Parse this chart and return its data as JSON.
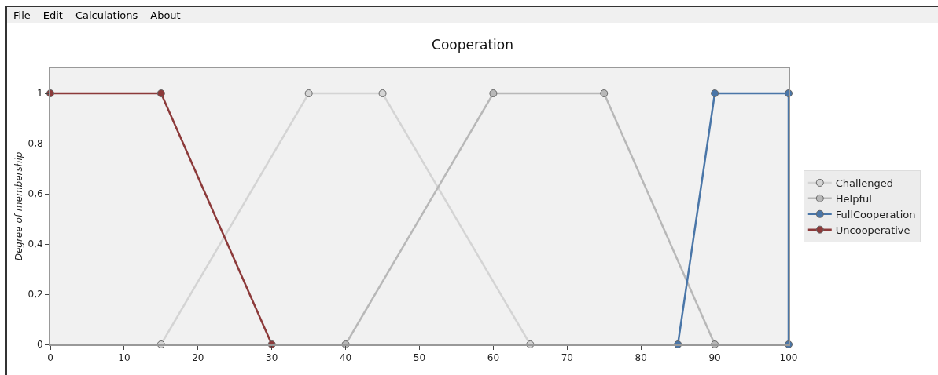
{
  "chart_data": {
    "type": "line",
    "title": "Cooperation",
    "ylabel": "Degree of membership",
    "annotations": [
      "File",
      "Edit",
      "Calculations",
      "About"
    ],
    "series": [
      {
        "name": "Challenged",
        "color": "#d4d4d4",
        "x": [
          15,
          35,
          45,
          65
        ],
        "values": [
          0,
          1,
          1,
          0
        ]
      },
      {
        "name": "Helpful",
        "color": "#b8b8b8",
        "x": [
          40,
          60,
          75,
          90
        ],
        "values": [
          0,
          1,
          1,
          0
        ]
      },
      {
        "name": "FullCooperation",
        "color": "#4a76a8",
        "x": [
          85,
          90,
          100,
          100
        ],
        "values": [
          0,
          1,
          1,
          0
        ]
      },
      {
        "name": "Uncooperative",
        "color": "#8c3a3a",
        "x": [
          0,
          15,
          30
        ],
        "values": [
          1,
          1,
          0
        ]
      }
    ],
    "xlim": [
      0,
      100
    ],
    "xticks": [
      0,
      10,
      20,
      30,
      40,
      50,
      60,
      70,
      80,
      90,
      100
    ],
    "ylim": [
      0,
      1.1
    ],
    "yticks": [
      0,
      {
        "value": 0.2,
        "label": "0,2"
      },
      {
        "value": 0.4,
        "label": "0,4"
      },
      {
        "value": 0.6,
        "label": "0,6"
      },
      {
        "value": 0.8,
        "label": "0,8"
      },
      1
    ],
    "grid": false,
    "legend": "right",
    "marker": "circle",
    "line_style": "solid"
  }
}
